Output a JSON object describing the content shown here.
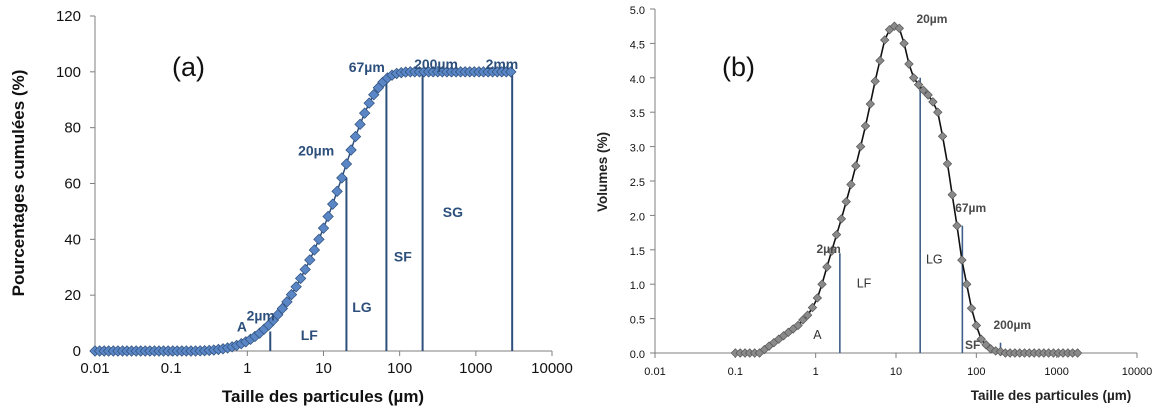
{
  "chart_data": [
    {
      "type": "line",
      "panel_label": "(a)",
      "xlabel": "Taille des particules (µm)",
      "ylabel": "Pourcentages cumulées (%)",
      "xscale": "log",
      "xlim": [
        0.01,
        10000
      ],
      "ylim": [
        0,
        120
      ],
      "x_ticks": [
        "0.01",
        "0.1",
        "1",
        "10",
        "100",
        "1000",
        "10000"
      ],
      "y_ticks": [
        "0",
        "20",
        "40",
        "60",
        "80",
        "100",
        "120"
      ],
      "grid": false,
      "series_color": "#5b86c5",
      "line_color": "#2d4f7c",
      "x": [
        0.01,
        0.0115,
        0.0132,
        0.0151,
        0.0174,
        0.02,
        0.023,
        0.0263,
        0.0302,
        0.0347,
        0.0398,
        0.0457,
        0.0525,
        0.0603,
        0.0692,
        0.0794,
        0.0912,
        0.105,
        0.12,
        0.138,
        0.158,
        0.182,
        0.209,
        0.24,
        0.275,
        0.316,
        0.363,
        0.417,
        0.479,
        0.55,
        0.631,
        0.724,
        0.832,
        0.955,
        1.1,
        1.26,
        1.45,
        1.66,
        1.91,
        2.19,
        2.51,
        2.88,
        3.31,
        3.8,
        4.37,
        5.01,
        5.75,
        6.61,
        7.59,
        8.71,
        10,
        11.5,
        13.2,
        15.1,
        17.4,
        20,
        23,
        26.3,
        30.2,
        34.7,
        39.8,
        45.7,
        52.5,
        60.3,
        69.2,
        79.4,
        91.2,
        105,
        120,
        138,
        158,
        182,
        209,
        240,
        275,
        316,
        363,
        417,
        479,
        550,
        631,
        724,
        832,
        955,
        1100,
        1260,
        1450,
        1660,
        1910,
        2190,
        2510,
        2880
      ],
      "y": [
        0,
        0,
        0,
        0,
        0,
        0,
        0,
        0,
        0,
        0,
        0,
        0,
        0,
        0,
        0,
        0,
        0,
        0,
        0,
        0,
        0,
        0,
        0,
        0.05,
        0.1,
        0.2,
        0.35,
        0.55,
        0.8,
        1.1,
        1.5,
        2,
        2.6,
        3.3,
        4.2,
        5.2,
        6.4,
        7.8,
        9.3,
        11,
        13,
        15.2,
        17.6,
        20.2,
        23,
        26,
        29.2,
        32.6,
        36.2,
        40,
        44,
        48.2,
        52.6,
        57.2,
        62,
        67,
        72,
        76.8,
        81.2,
        85.2,
        88.8,
        91.8,
        94.3,
        96.3,
        97.8,
        98.8,
        99.4,
        99.7,
        99.9,
        100,
        100,
        100,
        100,
        100,
        100,
        100,
        100,
        100,
        100,
        100,
        100,
        100,
        100,
        100,
        100,
        100,
        100,
        100,
        100,
        100,
        100,
        100
      ],
      "vlines": [
        {
          "x": 2,
          "y": 7
        },
        {
          "x": 20,
          "y": 62
        },
        {
          "x": 67,
          "y": 97
        },
        {
          "x": 200,
          "y": 100
        },
        {
          "x": 3000,
          "y": 100
        }
      ],
      "annotations": [
        {
          "text": "A",
          "x": 0.85,
          "y": 7
        },
        {
          "text": "2µm",
          "x": 1.5,
          "y": 11
        },
        {
          "text": "LF",
          "x": 6.5,
          "y": 4
        },
        {
          "text": "20µm",
          "x": 8,
          "y": 70
        },
        {
          "text": "LG",
          "x": 32,
          "y": 14
        },
        {
          "text": "67µm",
          "x": 37,
          "y": 100
        },
        {
          "text": "SF",
          "x": 110,
          "y": 32
        },
        {
          "text": "200µm",
          "x": 300,
          "y": 101
        },
        {
          "text": "SG",
          "x": 500,
          "y": 48
        },
        {
          "text": "2mm",
          "x": 2200,
          "y": 101
        }
      ]
    },
    {
      "type": "line",
      "panel_label": "(b)",
      "xlabel": "Taille des particules (µm)",
      "ylabel": "Volumes (%)",
      "xscale": "log",
      "xlim": [
        0.01,
        10000
      ],
      "ylim": [
        0,
        5
      ],
      "x_ticks": [
        "0.01",
        "0.1",
        "1",
        "10",
        "100",
        "1000",
        "10000"
      ],
      "y_ticks": [
        "0.0",
        "0.5",
        "1.0",
        "1.5",
        "2.0",
        "2.5",
        "3.0",
        "3.5",
        "4.0",
        "4.5",
        "5.0"
      ],
      "grid": false,
      "series_color": "#8a8a8a",
      "line_color": "#111111",
      "x": [
        0.1,
        0.115,
        0.132,
        0.151,
        0.174,
        0.2,
        0.23,
        0.263,
        0.302,
        0.347,
        0.398,
        0.457,
        0.525,
        0.603,
        0.692,
        0.794,
        0.912,
        1.05,
        1.2,
        1.38,
        1.58,
        1.82,
        2.09,
        2.4,
        2.75,
        3.16,
        3.63,
        4.17,
        4.79,
        5.5,
        6.31,
        7.24,
        8.32,
        9.55,
        11,
        12.6,
        14.5,
        16.6,
        19.1,
        21.9,
        25.1,
        28.8,
        33.1,
        38,
        43.7,
        50.1,
        57.5,
        66.1,
        75.9,
        87.1,
        100,
        115,
        132,
        151,
        174,
        200,
        230,
        263,
        302,
        347,
        398,
        457,
        525,
        603,
        692,
        794,
        912,
        1050,
        1200,
        1380,
        1580,
        1820
      ],
      "y": [
        0,
        0,
        0,
        0,
        0,
        0,
        0.05,
        0.1,
        0.15,
        0.2,
        0.25,
        0.3,
        0.35,
        0.4,
        0.48,
        0.55,
        0.66,
        0.8,
        1,
        1.25,
        1.48,
        1.72,
        1.95,
        2.2,
        2.45,
        2.72,
        3,
        3.3,
        3.62,
        3.95,
        4.25,
        4.55,
        4.7,
        4.75,
        4.72,
        4.5,
        4.2,
        4.0,
        3.9,
        3.82,
        3.75,
        3.65,
        3.5,
        3.15,
        2.75,
        2.3,
        1.85,
        1.35,
        1.0,
        0.65,
        0.4,
        0.2,
        0.12,
        0.06,
        0.03,
        0.02,
        0,
        0,
        0,
        0,
        0,
        0,
        0,
        0,
        0,
        0,
        0,
        0,
        0,
        0,
        0,
        0
      ],
      "vlines": [
        {
          "x": 2,
          "y": 1.45
        },
        {
          "x": 20,
          "y": 4.0
        },
        {
          "x": 67,
          "y": 1.85
        },
        {
          "x": 200,
          "y": 0.15
        }
      ],
      "annotations": [
        {
          "text": "A",
          "x": 1.05,
          "y": 0.2
        },
        {
          "text": "2µm",
          "x": 1.45,
          "y": 1.45
        },
        {
          "text": "LF",
          "x": 4,
          "y": 0.95
        },
        {
          "text": "20µm",
          "x": 28,
          "y": 4.8
        },
        {
          "text": "LG",
          "x": 30,
          "y": 1.3
        },
        {
          "text": "67µm",
          "x": 85,
          "y": 2.05
        },
        {
          "text": "SF",
          "x": 90,
          "y": 0.06
        },
        {
          "text": "200µm",
          "x": 280,
          "y": 0.35
        }
      ]
    }
  ]
}
